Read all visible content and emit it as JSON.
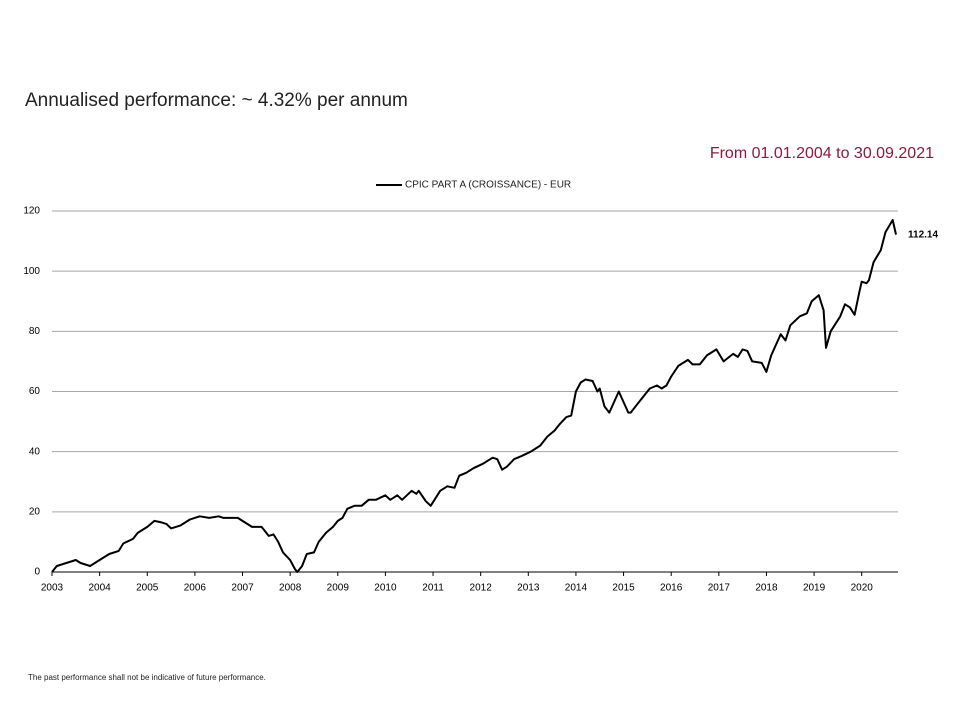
{
  "chart_data": {
    "type": "line",
    "title": "Annualised performance: ~ 4.32% per annum",
    "subtitle": "From 01.01.2004 to 30.09.2021",
    "footnote": "The past performance shall not be indicative of future performance.",
    "xlim": [
      2003,
      2020.72
    ],
    "xticks": [
      2003,
      2004,
      2005,
      2006,
      2007,
      2008,
      2009,
      2010,
      2011,
      2012,
      2013,
      2014,
      2015,
      2016,
      2017,
      2018,
      2019,
      2020
    ],
    "ylim": [
      0,
      120
    ],
    "yticks": [
      0,
      20,
      40,
      60,
      80,
      100,
      120
    ],
    "grid": true,
    "legend": "top",
    "series": [
      {
        "name": "CPIC PART A (CROISSANCE) - EUR",
        "color": "#000000",
        "x": [
          2003,
          2003.1,
          2003.3,
          2003.5,
          2003.6,
          2003.8,
          2004,
          2004.2,
          2004.4,
          2004.5,
          2004.7,
          2004.8,
          2005,
          2005.15,
          2005.3,
          2005.4,
          2005.5,
          2005.7,
          2005.9,
          2006.1,
          2006.3,
          2006.5,
          2006.6,
          2006.9,
          2007,
          2007.2,
          2007.4,
          2007.55,
          2007.65,
          2007.75,
          2007.85,
          2008,
          2008.1,
          2008.15,
          2008.25,
          2008.35,
          2008.5,
          2008.6,
          2008.75,
          2008.9,
          2009,
          2009.1,
          2009.2,
          2009.35,
          2009.5,
          2009.65,
          2009.8,
          2010,
          2010.1,
          2010.25,
          2010.35,
          2010.55,
          2010.65,
          2010.7,
          2010.85,
          2010.95,
          2011.15,
          2011.3,
          2011.45,
          2011.55,
          2011.7,
          2011.85,
          2012.05,
          2012.25,
          2012.35,
          2012.45,
          2012.55,
          2012.7,
          2012.85,
          2013.05,
          2013.25,
          2013.4,
          2013.55,
          2013.65,
          2013.8,
          2013.9,
          2014,
          2014.1,
          2014.2,
          2014.35,
          2014.45,
          2014.5,
          2014.6,
          2014.7,
          2014.9,
          2015.1,
          2015.15,
          2015.35,
          2015.55,
          2015.7,
          2015.8,
          2015.9,
          2016,
          2016.15,
          2016.35,
          2016.45,
          2016.6,
          2016.75,
          2016.95,
          2017.1,
          2017.3,
          2017.4,
          2017.5,
          2017.6,
          2017.7,
          2017.9,
          2018,
          2018.1,
          2018.3,
          2018.4,
          2018.5,
          2018.7,
          2018.85,
          2018.95,
          2019.1,
          2019.2,
          2019.25,
          2019.35,
          2019.55,
          2019.65,
          2019.75,
          2019.85,
          2019.95,
          2020,
          2020.1,
          2020.15,
          2020.25,
          2020.4,
          2020.5,
          2020.65,
          2020.72
        ],
        "values": [
          0,
          2,
          3,
          4,
          3,
          2,
          4,
          6,
          7,
          9.5,
          11,
          13,
          15,
          17,
          16.5,
          16,
          14.5,
          15.5,
          17.5,
          18.5,
          18,
          18.5,
          18,
          18,
          17,
          15,
          15,
          12,
          12.5,
          10,
          6.5,
          4,
          1,
          0,
          2,
          6,
          6.5,
          10,
          13,
          15,
          17,
          18,
          21,
          22,
          22,
          24,
          24,
          25.5,
          24,
          25.5,
          24,
          27,
          26,
          27,
          23.5,
          22,
          27,
          28.5,
          28,
          32,
          33,
          34.5,
          36,
          38,
          37.5,
          34,
          35,
          37.5,
          38.5,
          40,
          42,
          45,
          47,
          49,
          51.5,
          52,
          60,
          63,
          64,
          63.5,
          60,
          61,
          55,
          53,
          60,
          53,
          53,
          57,
          61,
          62,
          61,
          62,
          65,
          68.5,
          70.5,
          69,
          69,
          72,
          74,
          70,
          72.5,
          71.5,
          74,
          73.5,
          70,
          69.5,
          66.5,
          72,
          79,
          77,
          82,
          85,
          86,
          90,
          92,
          87,
          74.5,
          80,
          85,
          89,
          88,
          85.5,
          93,
          96.5,
          96,
          97,
          103,
          107,
          113,
          117,
          112.14
        ]
      }
    ]
  }
}
